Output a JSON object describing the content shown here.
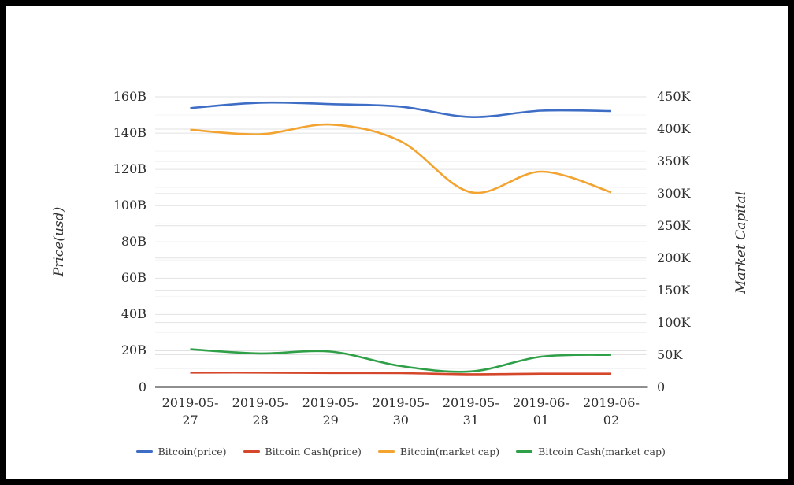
{
  "frame": {
    "background": "#ffffff",
    "border_color": "#000000"
  },
  "palette": {
    "grid_major": "#e2e2e2",
    "grid_minor": "#f4f4f4",
    "axis_line": "#1f1f1f",
    "text": "#2e2e2e"
  },
  "chart_data": {
    "type": "line",
    "title": "",
    "x_categories": [
      "2019-05-27",
      "2019-05-28",
      "2019-05-29",
      "2019-05-30",
      "2019-05-31",
      "2019-06-01",
      "2019-06-02"
    ],
    "left_axis": {
      "title": "Price(usd)",
      "tick_labels": [
        "0",
        "20B",
        "40B",
        "60B",
        "80B",
        "100B",
        "120B",
        "140B",
        "160B"
      ],
      "tick_values": [
        0,
        20,
        40,
        60,
        80,
        100,
        120,
        140,
        160
      ],
      "minor_tick_values": [
        10,
        30,
        50,
        70,
        90,
        110,
        130,
        150
      ],
      "range": [
        0,
        160
      ]
    },
    "right_axis": {
      "title": "Market Capital",
      "tick_labels": [
        "0",
        "50K",
        "100K",
        "150K",
        "200K",
        "250K",
        "300K",
        "350K",
        "400K",
        "450K"
      ],
      "tick_values": [
        0,
        50,
        100,
        150,
        200,
        250,
        300,
        350,
        400,
        450
      ],
      "range": [
        0,
        450
      ]
    },
    "grid": true,
    "legend_position": "bottom",
    "series": [
      {
        "name": "Bitcoin(price)",
        "color": "#3e6dc6",
        "axis": "left",
        "values": [
          153.8,
          156.8,
          156.0,
          154.6,
          148.9,
          152.4,
          152.2
        ]
      },
      {
        "name": "Bitcoin Cash(price)",
        "color": "#d5472b",
        "axis": "left",
        "values": [
          7.9,
          7.9,
          7.7,
          7.6,
          7.0,
          7.3,
          7.3
        ]
      },
      {
        "name": "Bitcoin(market cap)",
        "color": "#f2a330",
        "axis": "right",
        "values": [
          399,
          392,
          407,
          381,
          302,
          334,
          302
        ]
      },
      {
        "name": "Bitcoin Cash(market cap)",
        "color": "#2fa048",
        "axis": "right",
        "values": [
          58.5,
          52,
          55,
          32.5,
          24,
          47,
          50
        ]
      }
    ]
  }
}
